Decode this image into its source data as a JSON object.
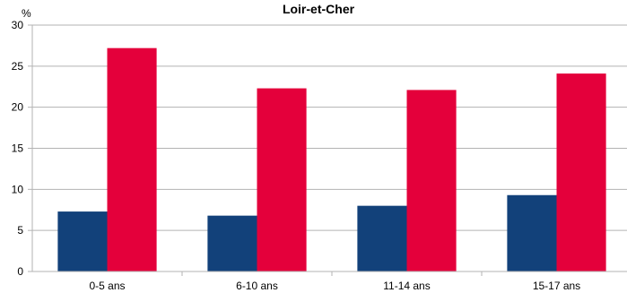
{
  "chart_data": {
    "type": "bar",
    "title": "Loir-et-Cher",
    "ylabel": "%",
    "xlabel": "",
    "categories": [
      "0-5 ans",
      "6-10 ans",
      "11-14 ans",
      "15-17 ans"
    ],
    "series": [
      {
        "values": [
          7.3,
          6.8,
          8.0,
          9.3
        ],
        "color": "#12417a"
      },
      {
        "values": [
          27.2,
          22.3,
          22.1,
          24.1
        ],
        "color": "#e4003b"
      }
    ],
    "ylim": [
      0,
      30
    ],
    "yticks": [
      0,
      5,
      10,
      15,
      20,
      25,
      30
    ],
    "grid": true,
    "legend": "none",
    "colors": {
      "grid": "#b3b3b3",
      "axis": "#b3b3b3"
    }
  }
}
